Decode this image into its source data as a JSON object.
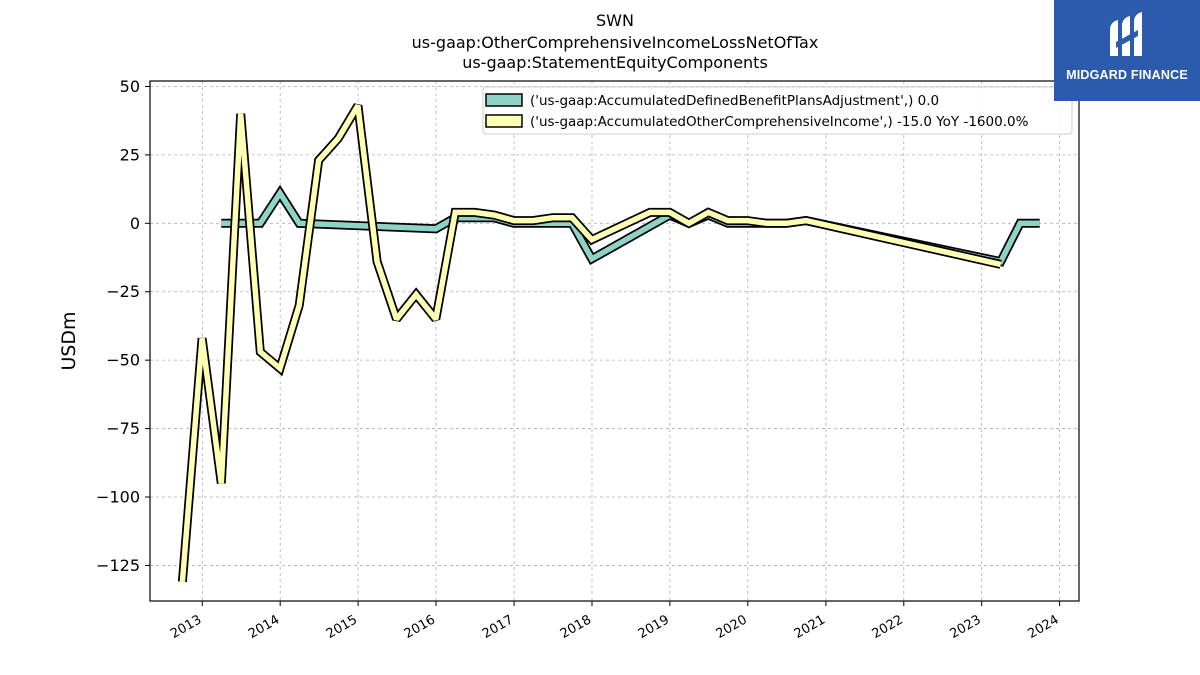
{
  "logo": {
    "brand_text": "MIDGARD FINANCE",
    "background": "#2c5bae"
  },
  "chart_data": {
    "type": "line",
    "title_lines": [
      "SWN",
      "us-gaap:OtherComprehensiveIncomeLossNetOfTax",
      "us-gaap:StatementEquityComponents"
    ],
    "xlabel": "",
    "ylabel": "USDm",
    "ylim": [
      -138,
      52
    ],
    "xlim": [
      "2012-05-01",
      "2024-04-01"
    ],
    "yticks": [
      50,
      25,
      0,
      -25,
      -50,
      -75,
      -100,
      -125
    ],
    "ytick_labels": [
      "50",
      "25",
      "0",
      "−25",
      "−50",
      "−75",
      "−100",
      "−125"
    ],
    "xticks": [
      "2013-01-01",
      "2014-01-01",
      "2015-01-01",
      "2016-01-01",
      "2017-01-01",
      "2018-01-01",
      "2019-01-01",
      "2020-01-01",
      "2021-01-01",
      "2022-01-01",
      "2023-01-01",
      "2024-01-01"
    ],
    "xtick_labels": [
      "2013",
      "2014",
      "2015",
      "2016",
      "2017",
      "2018",
      "2019",
      "2020",
      "2021",
      "2022",
      "2023",
      "2024"
    ],
    "grid": true,
    "legend_position": "top-right",
    "series": [
      {
        "name": "('us-gaap:AccumulatedDefinedBenefitPlansAdjustment',) 0.0",
        "color": "#8dd3c7",
        "x": [
          "2013-03-31",
          "2013-06-30",
          "2013-09-30",
          "2013-12-31",
          "2014-03-31",
          "2015-12-31",
          "2016-03-31",
          "2016-06-30",
          "2016-09-30",
          "2016-12-31",
          "2017-03-31",
          "2017-06-30",
          "2017-09-30",
          "2017-12-31",
          "2018-12-31",
          "2019-03-31",
          "2019-06-30",
          "2019-09-30",
          "2019-12-31",
          "2020-03-31",
          "2020-06-30",
          "2020-09-30",
          "2023-03-31",
          "2023-06-30",
          "2023-09-30"
        ],
        "y": [
          0,
          0,
          0,
          11,
          0,
          -2,
          2,
          2,
          2,
          0,
          0,
          0,
          0,
          -13,
          3,
          0,
          3,
          0,
          0,
          0,
          0,
          1,
          -14,
          0,
          0
        ]
      },
      {
        "name": "('us-gaap:AccumulatedOtherComprehensiveIncome',) -15.0 YoY -1600.0%",
        "color": "#ffffb3",
        "x": [
          "2012-09-30",
          "2012-12-31",
          "2013-03-31",
          "2013-06-30",
          "2013-09-30",
          "2013-12-31",
          "2014-03-31",
          "2014-06-30",
          "2014-09-30",
          "2014-12-31",
          "2015-03-31",
          "2015-06-30",
          "2015-09-30",
          "2015-12-31",
          "2016-03-31",
          "2016-06-30",
          "2016-09-30",
          "2016-12-31",
          "2017-03-31",
          "2017-06-30",
          "2017-09-30",
          "2017-12-31",
          "2018-09-30",
          "2018-12-31",
          "2019-03-31",
          "2019-06-30",
          "2019-09-30",
          "2019-12-31",
          "2020-03-31",
          "2020-06-30",
          "2020-09-30",
          "2023-03-31"
        ],
        "y": [
          -131,
          -42,
          -95,
          40,
          -47,
          -53,
          -30,
          23,
          31,
          43,
          -14,
          -35,
          -26,
          -35,
          4,
          4,
          3,
          1,
          1,
          2,
          2,
          -6,
          4,
          4,
          0,
          4,
          1,
          1,
          0,
          0,
          1,
          -15
        ]
      }
    ]
  }
}
